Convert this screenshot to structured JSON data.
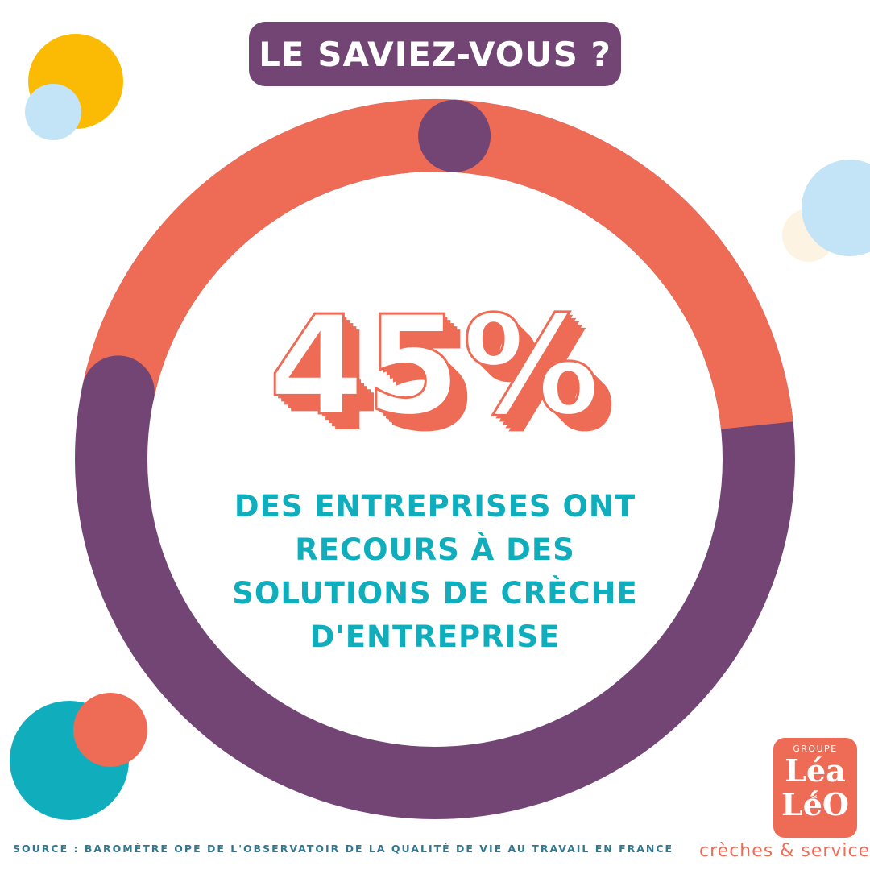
{
  "header": {
    "title": "LE SAVIEZ-VOUS ?"
  },
  "chart_data": {
    "type": "pie",
    "title": "",
    "value_label": "45%",
    "slices": [
      {
        "label": "",
        "value": 45,
        "color": "#724575"
      },
      {
        "label": "",
        "value": 55,
        "color": "#ee6b55"
      }
    ]
  },
  "caption": {
    "lines": [
      "DES ENTREPRISES ONT",
      "RECOURS À DES",
      "SOLUTIONS DE CRÈCHE",
      "D'ENTREPRISE"
    ]
  },
  "source": {
    "text": "SOURCE : BAROMÈTRE OPE DE L'OBSERVATOIR DE LA QUALITÉ DE VIE AU TRAVAIL EN FRANCE"
  },
  "logo": {
    "groupe": "GROUPE",
    "line1": "Léa",
    "amp": "&",
    "line2": "LéO",
    "tagline": "crèches & services"
  },
  "colors": {
    "purple": "#724575",
    "coral": "#ee6b55",
    "teal": "#10adbd",
    "yellow": "#fbbb05",
    "light_blue": "#c3e3f6",
    "cream": "#fcf3e3"
  }
}
